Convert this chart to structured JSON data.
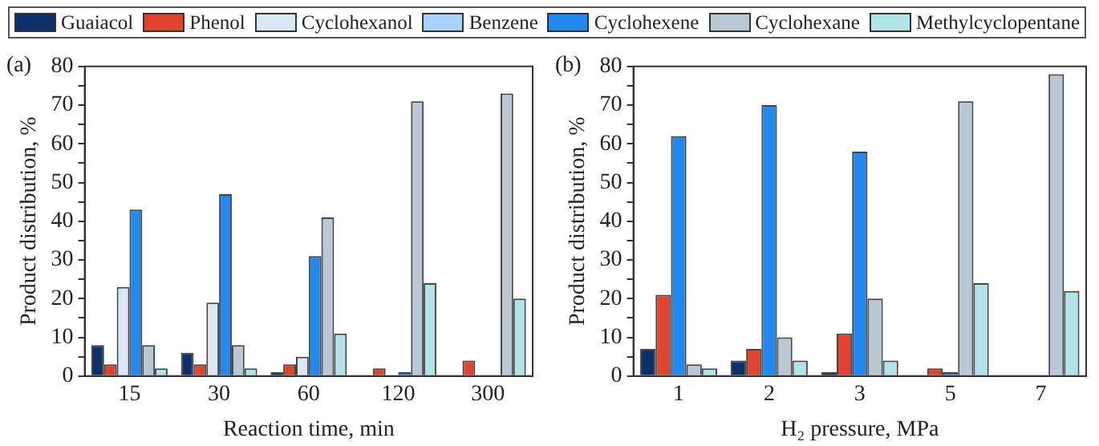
{
  "chart_data": [
    {
      "type": "bar",
      "xlabel": "Reaction time, min",
      "ylabel": "Product distribution, %",
      "annotations": [
        "(a)"
      ],
      "legend": "top",
      "categories": [
        "15",
        "30",
        "60",
        "120",
        "300"
      ],
      "ylim": [
        0,
        80
      ],
      "yticks": [
        0,
        {
          "value": 5,
          "label": null
        },
        10,
        {
          "value": 15,
          "label": null
        },
        20,
        {
          "value": 25,
          "label": null
        },
        30,
        {
          "value": 35,
          "label": null
        },
        40,
        {
          "value": 45,
          "label": null
        },
        50,
        {
          "value": 55,
          "label": null
        },
        60,
        {
          "value": 65,
          "label": null
        },
        70,
        {
          "value": 75,
          "label": null
        },
        80
      ],
      "series": [
        {
          "name": "Guaiacol",
          "color": "#0d2f6b",
          "values": [
            8,
            6,
            1,
            0,
            0
          ]
        },
        {
          "name": "Phenol",
          "color": "#e0442f",
          "values": [
            3,
            3,
            3,
            2,
            4
          ]
        },
        {
          "name": "Cyclohexanol",
          "color": "#d9e8f4",
          "values": [
            23,
            19,
            5,
            0,
            0
          ]
        },
        {
          "name": "Benzene",
          "color": "#a9d2fa",
          "values": [
            null,
            null,
            null,
            null,
            null
          ]
        },
        {
          "name": "Cyclohexene",
          "color": "#2389ef",
          "values": [
            43,
            47,
            31,
            1,
            0
          ]
        },
        {
          "name": "Cyclohexane",
          "color": "#bac8d6",
          "values": [
            8,
            8,
            41,
            71,
            73
          ]
        },
        {
          "name": "Methylcyclopentane",
          "color": "#b2e3e8",
          "values": [
            2,
            2,
            11,
            24,
            20
          ]
        }
      ]
    },
    {
      "type": "bar",
      "xlabel": "H₂ pressure, MPa",
      "ylabel": "Product distribution, %",
      "annotations": [
        "(b)"
      ],
      "legend": "top",
      "categories": [
        "1",
        "2",
        "3",
        "5",
        "7"
      ],
      "ylim": [
        0,
        80
      ],
      "yticks": [
        0,
        {
          "value": 5,
          "label": null
        },
        10,
        {
          "value": 15,
          "label": null
        },
        20,
        {
          "value": 25,
          "label": null
        },
        30,
        {
          "value": 35,
          "label": null
        },
        40,
        {
          "value": 45,
          "label": null
        },
        50,
        {
          "value": 55,
          "label": null
        },
        60,
        {
          "value": 65,
          "label": null
        },
        70,
        {
          "value": 75,
          "label": null
        },
        80
      ],
      "series": [
        {
          "color": "#0d2f6b",
          "values": [
            7,
            4,
            1,
            0,
            0
          ]
        },
        {
          "color": "#e0442f",
          "values": [
            21,
            7,
            11,
            2,
            0
          ]
        },
        {
          "color": "#2389ef",
          "values": [
            62,
            70,
            58,
            1,
            0
          ]
        },
        {
          "color": "#bac8d6",
          "values": [
            3,
            10,
            20,
            71,
            78
          ]
        },
        {
          "color": "#b2e3e8",
          "values": [
            2,
            4,
            4,
            24,
            22
          ]
        }
      ]
    }
  ]
}
